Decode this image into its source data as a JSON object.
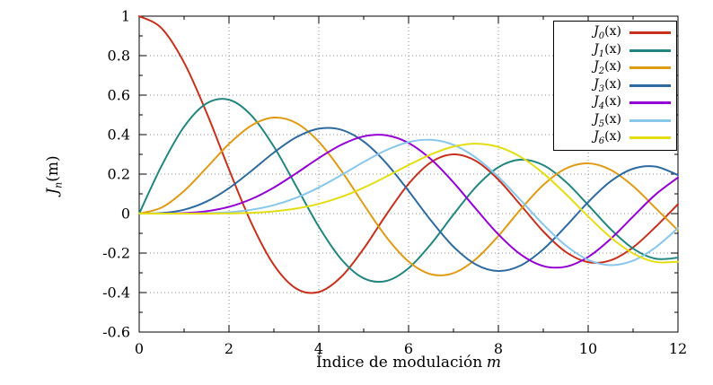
{
  "chart_data": {
    "type": "line",
    "title": "",
    "xlabel": {
      "text": "Índice de modulación",
      "var": "m"
    },
    "ylabel": {
      "base": "J",
      "sub": "n",
      "tail": "(m)"
    },
    "xlim": [
      0,
      12
    ],
    "ylim": [
      -0.6,
      1
    ],
    "xticks": {
      "values": [
        0,
        2,
        4,
        6,
        8,
        10,
        12
      ],
      "labels": [
        "0",
        "2",
        "4",
        "6",
        "8",
        "10",
        "12"
      ]
    },
    "yticks": {
      "values": [
        -0.6,
        -0.4,
        -0.2,
        0,
        0.2,
        0.4,
        0.6,
        0.8,
        1
      ],
      "labels": [
        "-0.6",
        "-0.4",
        "-0.2",
        "0",
        "0.2",
        "0.4",
        "0.6",
        "0.8",
        "1"
      ]
    },
    "minor_xticks": [
      1,
      3,
      5,
      7,
      9,
      11
    ],
    "minor_yticks": [
      -0.5,
      -0.3,
      -0.1,
      0.1,
      0.3,
      0.5,
      0.7,
      0.9
    ],
    "grid": true,
    "grid_color": "#8d8d8d",
    "border_color": "#000000",
    "legend_position": "top-right",
    "x": [
      0,
      0.5,
      1,
      1.5,
      2,
      2.5,
      3,
      3.5,
      4,
      4.5,
      5,
      5.5,
      6,
      6.5,
      7,
      7.5,
      8,
      8.5,
      9,
      9.5,
      10,
      10.5,
      11,
      11.5,
      12
    ],
    "series": [
      {
        "label": {
          "base": "J",
          "sub": "0",
          "tail": "(x)"
        },
        "color": "#c5311d",
        "values": [
          1,
          0.9385,
          0.7652,
          0.5118,
          0.2239,
          -0.0484,
          -0.2601,
          -0.3801,
          -0.3971,
          -0.3205,
          -0.1776,
          -0.0068,
          0.1506,
          0.2601,
          0.3001,
          0.2663,
          0.1717,
          0.0419,
          -0.0903,
          -0.1939,
          -0.2459,
          -0.2366,
          -0.1712,
          -0.0677,
          0.0477
        ]
      },
      {
        "label": {
          "base": "J",
          "sub": "1",
          "tail": "(x)"
        },
        "color": "#22867e",
        "values": [
          0,
          0.2423,
          0.4401,
          0.5579,
          0.5767,
          0.4971,
          0.3391,
          0.1374,
          -0.066,
          -0.2311,
          -0.3276,
          -0.3414,
          -0.2767,
          -0.1538,
          -0.0047,
          0.1352,
          0.2346,
          0.2731,
          0.2453,
          0.1613,
          0.0435,
          -0.0789,
          -0.1768,
          -0.2284,
          -0.2234
        ]
      },
      {
        "label": {
          "base": "J",
          "sub": "2",
          "tail": "(x)"
        },
        "color": "#e09b14",
        "values": [
          0,
          0.0306,
          0.1149,
          0.2321,
          0.3528,
          0.4461,
          0.4861,
          0.4586,
          0.3641,
          0.2178,
          0.0466,
          -0.1174,
          -0.2428,
          -0.3074,
          -0.3014,
          -0.2302,
          -0.113,
          0.0224,
          0.1448,
          0.2279,
          0.2546,
          0.2216,
          0.139,
          0.028,
          -0.0849
        ]
      },
      {
        "label": {
          "base": "J",
          "sub": "3",
          "tail": "(x)"
        },
        "color": "#2d6a9f",
        "values": [
          0,
          0.0026,
          0.0196,
          0.061,
          0.1289,
          0.2166,
          0.3091,
          0.3867,
          0.4302,
          0.4247,
          0.3648,
          0.2561,
          0.1148,
          -0.0353,
          -0.1676,
          -0.258,
          -0.2911,
          -0.2626,
          -0.1809,
          -0.0653,
          0.0584,
          0.1633,
          0.2273,
          0.2382,
          0.1951
        ]
      },
      {
        "label": {
          "base": "J",
          "sub": "4",
          "tail": "(x)"
        },
        "color": "#9400d3",
        "values": [
          0,
          0.0002,
          0.0025,
          0.0118,
          0.034,
          0.0738,
          0.132,
          0.2044,
          0.2811,
          0.3484,
          0.3912,
          0.3967,
          0.3576,
          0.2748,
          0.1578,
          0.0238,
          -0.1054,
          -0.2077,
          -0.2655,
          -0.2691,
          -0.2196,
          -0.1283,
          -0.015,
          0.0963,
          0.1825
        ]
      },
      {
        "label": {
          "base": "J",
          "sub": "5",
          "tail": "(x)"
        },
        "color": "#88c6ea",
        "values": [
          0,
          0,
          0.0002,
          0.002,
          0.007,
          0.0196,
          0.043,
          0.0805,
          0.1321,
          0.1947,
          0.2611,
          0.321,
          0.3621,
          0.3736,
          0.3479,
          0.2834,
          0.1858,
          0.0671,
          -0.0551,
          -0.1613,
          -0.2341,
          -0.2611,
          -0.2383,
          -0.1712,
          -0.0735
        ]
      },
      {
        "label": {
          "base": "J",
          "sub": "6",
          "tail": "(x)"
        },
        "color": "#e3de14",
        "values": [
          0,
          0,
          0,
          0.0002,
          0.0012,
          0.0041,
          0.0114,
          0.0256,
          0.0491,
          0.0843,
          0.131,
          0.1868,
          0.2458,
          0.2999,
          0.3392,
          0.3541,
          0.3376,
          0.2867,
          0.2043,
          0.0993,
          -0.0145,
          -0.1204,
          -0.2016,
          -0.2452,
          -0.2437
        ]
      }
    ]
  }
}
